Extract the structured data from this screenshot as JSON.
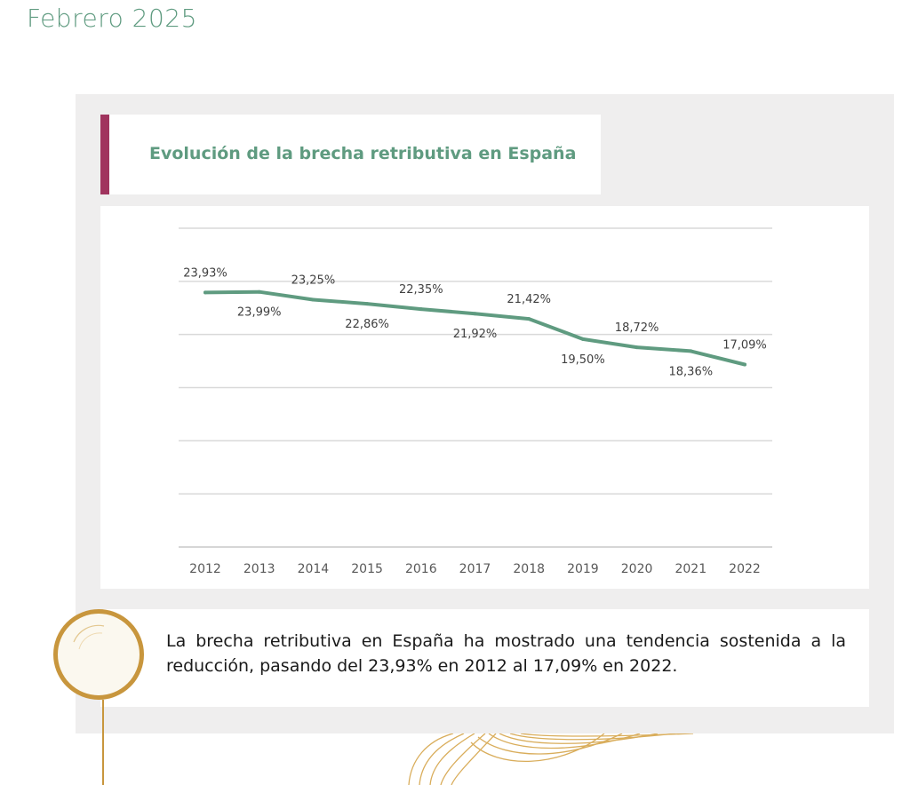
{
  "header": {
    "date": "Febrero 2025"
  },
  "colors": {
    "accent": "#a0345e",
    "green": "#5f9b80",
    "gold": "#c8963d",
    "panel": "#efeeee"
  },
  "chart_data": {
    "type": "line",
    "title": "Evolución de la brecha retributiva en España",
    "xlabel": "",
    "ylabel": "",
    "grid": true,
    "x": [
      "2012",
      "2013",
      "2014",
      "2015",
      "2016",
      "2017",
      "2018",
      "2019",
      "2020",
      "2021",
      "2022"
    ],
    "series": [
      {
        "values": [
          23.93,
          23.99,
          23.25,
          22.86,
          22.35,
          21.92,
          21.42,
          19.5,
          18.72,
          18.36,
          17.09
        ]
      }
    ],
    "labels": [
      "23,93%",
      "23,99%",
      "23,25%",
      "22,86%",
      "22,35%",
      "21,92%",
      "21,42%",
      "19,50%",
      "18,72%",
      "18,36%",
      "17,09%"
    ]
  },
  "summary": {
    "text": "La brecha retributiva en España ha mostrado una tendencia sostenida a la reducción, pasando del 23,93% en 2012 al 17,09% en 2022."
  },
  "decorations": {
    "circle_icon": "gold-ring-icon",
    "waves_icon": "contour-waves-icon"
  }
}
